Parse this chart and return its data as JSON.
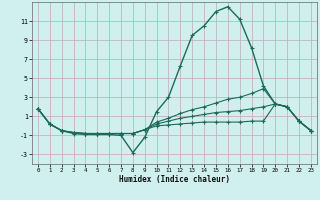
{
  "xlabel": "Humidex (Indice chaleur)",
  "bg_color": "#cff0ee",
  "grid_color": "#c4a8b4",
  "line_color": "#1a6b5a",
  "xlim": [
    -0.5,
    23.5
  ],
  "ylim": [
    -4,
    13
  ],
  "yticks": [
    -3,
    -1,
    1,
    3,
    5,
    7,
    9,
    11
  ],
  "xticks": [
    0,
    1,
    2,
    3,
    4,
    5,
    6,
    7,
    8,
    9,
    10,
    11,
    12,
    13,
    14,
    15,
    16,
    17,
    18,
    19,
    20,
    21,
    22,
    23
  ],
  "line1_x": [
    0,
    1,
    2,
    3,
    4,
    5,
    6,
    7,
    8,
    9,
    10,
    11,
    12,
    13,
    14,
    15,
    16,
    17,
    18,
    19,
    20,
    21,
    22,
    23
  ],
  "line1_y": [
    1.8,
    0.2,
    -0.5,
    -0.8,
    -0.9,
    -0.9,
    -0.9,
    -1.0,
    -2.8,
    -1.2,
    1.5,
    3.0,
    6.3,
    9.5,
    10.5,
    12.0,
    12.5,
    11.2,
    8.2,
    4.2,
    2.3,
    2.0,
    0.5,
    -0.5
  ],
  "line2_x": [
    0,
    1,
    2,
    3,
    4,
    5,
    6,
    7,
    8,
    9,
    10,
    11,
    12,
    13,
    14,
    15,
    16,
    17,
    18,
    19,
    20,
    21,
    22,
    23
  ],
  "line2_y": [
    1.8,
    0.2,
    -0.5,
    -0.7,
    -0.8,
    -0.8,
    -0.8,
    -0.8,
    -0.8,
    -0.4,
    0.4,
    0.8,
    1.3,
    1.7,
    2.0,
    2.4,
    2.8,
    3.0,
    3.4,
    3.9,
    2.3,
    2.0,
    0.5,
    -0.5
  ],
  "line3_x": [
    0,
    1,
    2,
    3,
    4,
    5,
    6,
    7,
    8,
    9,
    10,
    11,
    12,
    13,
    14,
    15,
    16,
    17,
    18,
    19,
    20,
    21,
    22,
    23
  ],
  "line3_y": [
    1.8,
    0.2,
    -0.5,
    -0.7,
    -0.8,
    -0.8,
    -0.8,
    -0.8,
    -0.8,
    -0.4,
    0.2,
    0.5,
    0.8,
    1.0,
    1.2,
    1.4,
    1.5,
    1.6,
    1.8,
    2.0,
    2.3,
    2.0,
    0.5,
    -0.5
  ],
  "line4_x": [
    0,
    1,
    2,
    3,
    4,
    5,
    6,
    7,
    8,
    9,
    10,
    11,
    12,
    13,
    14,
    15,
    16,
    17,
    18,
    19,
    20,
    21,
    22,
    23
  ],
  "line4_y": [
    1.8,
    0.2,
    -0.5,
    -0.7,
    -0.8,
    -0.8,
    -0.8,
    -0.8,
    -0.8,
    -0.4,
    0.0,
    0.1,
    0.2,
    0.3,
    0.4,
    0.4,
    0.4,
    0.4,
    0.5,
    0.5,
    2.3,
    2.0,
    0.5,
    -0.5
  ]
}
